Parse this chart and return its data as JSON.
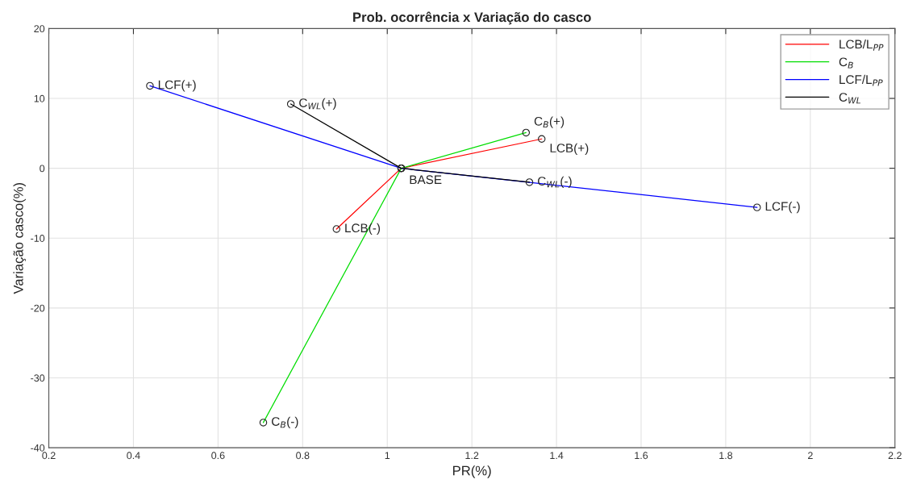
{
  "chart_data": {
    "type": "line",
    "title": "Prob. ocorrência x Variação do casco",
    "xlabel": "PR(%)",
    "ylabel": "Variação casco(%)",
    "xlim": [
      0.2,
      2.2
    ],
    "xticks": [
      0.2,
      0.4,
      0.6,
      0.8,
      1,
      1.2,
      1.4,
      1.6,
      1.8,
      2,
      2.2
    ],
    "ylim": [
      -40,
      20
    ],
    "yticks": [
      -40,
      -30,
      -20,
      -10,
      0,
      10,
      20
    ],
    "grid": true,
    "legend": "top right",
    "marker": "circle",
    "line_style": "solid",
    "series": [
      {
        "name": "LCB/L$_{PP}$",
        "color": "#ff0000",
        "x": [
          0.88,
          1.033,
          1.365
        ],
        "values": [
          -8.7,
          0,
          4.2
        ]
      },
      {
        "name": "C$_{B}$",
        "color": "#00dd00",
        "x": [
          0.707,
          1.033,
          1.328
        ],
        "values": [
          -36.4,
          0,
          5.1
        ]
      },
      {
        "name": "LCF/L$_{PP}$",
        "color": "#0000ff",
        "x": [
          0.439,
          1.033,
          1.874
        ],
        "values": [
          11.8,
          0,
          -5.6
        ]
      },
      {
        "name": "C$_{WL}$",
        "color": "#000000",
        "x": [
          0.772,
          1.033,
          1.336
        ],
        "values": [
          9.2,
          0,
          -2.0
        ]
      }
    ],
    "annotations": [
      {
        "text": "LCF(+)",
        "x": 0.439,
        "y": 11.8
      },
      {
        "text": "C$_{WL}$(+)",
        "x": 0.772,
        "y": 9.2
      },
      {
        "text": "C$_{B}$(+)",
        "x": 1.328,
        "y": 5.1
      },
      {
        "text": "LCB(+)",
        "x": 1.365,
        "y": 4.2
      },
      {
        "text": "BASE",
        "x": 1.033,
        "y": 0
      },
      {
        "text": "C$_{WL}$(-)",
        "x": 1.336,
        "y": -2.0
      },
      {
        "text": "LCF(-)",
        "x": 1.874,
        "y": -5.6
      },
      {
        "text": "LCB(-)",
        "x": 0.88,
        "y": -8.7
      },
      {
        "text": "C$_{B}$(-)",
        "x": 0.707,
        "y": -36.4
      }
    ]
  }
}
